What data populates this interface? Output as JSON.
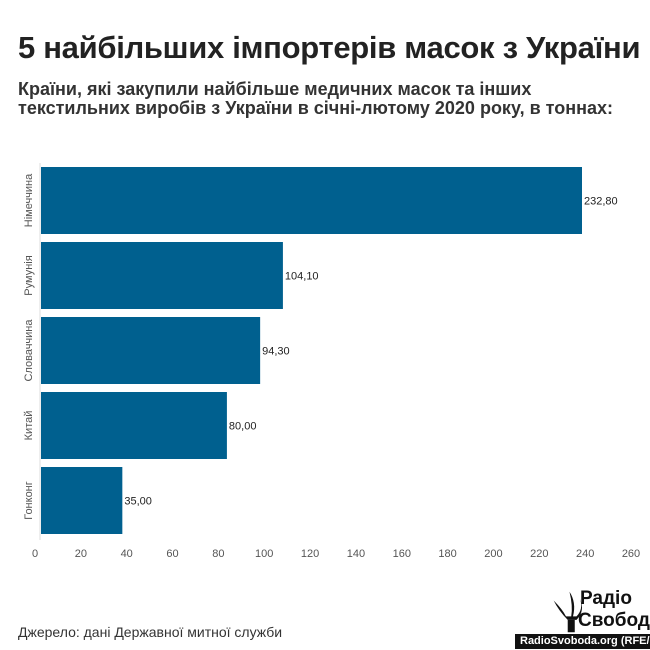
{
  "title": "5 найбільших імпортерів масок з України",
  "subtitle": "Країни, які закупили найбільше медичних масок та інших текстильних виробів з України в січні-лютому 2020 року, в тоннах:",
  "source": "Джерело: дані Державної митної служби",
  "logo": {
    "name_line1": "Радіо",
    "name_line2": "Свобода",
    "credit": "RadioSvoboda.org (RFE/RL)"
  },
  "chart_data": {
    "type": "bar",
    "orientation": "horizontal",
    "categories": [
      "Німеччина",
      "Румунія",
      "Словаччина",
      "Китай",
      "Гонконг"
    ],
    "values": [
      232.8,
      104.1,
      94.3,
      80.0,
      35.0
    ],
    "value_labels": [
      "232,80",
      "104,10",
      "94,30",
      "80,00",
      "35,00"
    ],
    "xticks": [
      0,
      20,
      40,
      60,
      80,
      100,
      120,
      140,
      160,
      180,
      200,
      220,
      240,
      260
    ],
    "xlim": [
      0,
      260
    ],
    "color": "#00608f",
    "xlabel": "",
    "ylabel": ""
  }
}
